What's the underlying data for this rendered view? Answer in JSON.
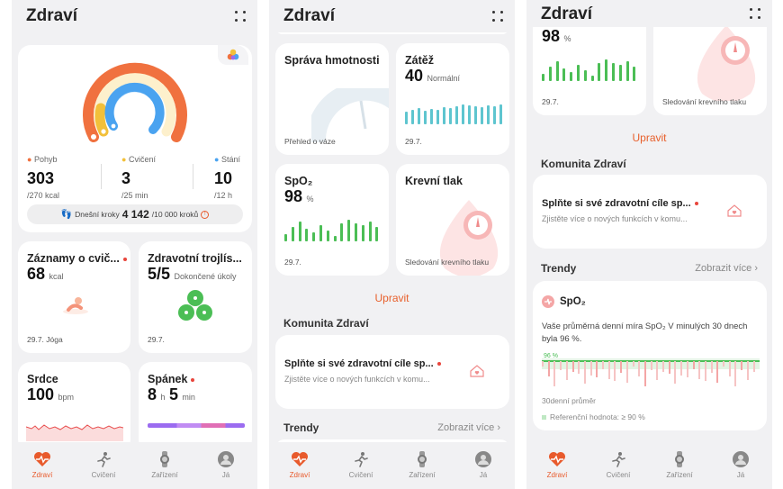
{
  "app_title": "Zdraví",
  "colors": {
    "accent": "#e85a2c",
    "move": "#f0713f",
    "exercise": "#f2c03a",
    "stand": "#4aa3f0",
    "green": "#4bbe55",
    "teal": "#5ec5cf",
    "pink": "#f4a6a6"
  },
  "phone1": {
    "rings": {
      "move": {
        "label": "Pohyb",
        "value": "303",
        "goal": "/270 kcal",
        "fraction": 1.0
      },
      "exercise": {
        "label": "Cvičení",
        "value": "3",
        "goal": "/25 min",
        "fraction": 0.12
      },
      "stand": {
        "label": "Stání",
        "value": "10",
        "goal": "/12 h",
        "fraction": 0.83
      }
    },
    "steps": {
      "label": "Dnešní kroky",
      "value": "4 142",
      "goal": "/10 000 kroků"
    },
    "exercise_card": {
      "title": "Záznamy o cvič...",
      "value": "68",
      "unit": "kcal",
      "foot": "29.7. Jóga"
    },
    "trio_card": {
      "title": "Zdravotní trojlís...",
      "value": "5/5",
      "unit": "Dokončené úkoly",
      "foot": "29.7."
    },
    "heart_card": {
      "title": "Srdce",
      "value": "100",
      "unit": "bpm"
    },
    "sleep_card": {
      "title": "Spánek",
      "hours": "8",
      "h_unit": "h",
      "minutes": "5",
      "m_unit": "min"
    }
  },
  "phone2": {
    "weight_card": {
      "title": "Správa hmotnosti",
      "foot": "Přehled o váze"
    },
    "load_card": {
      "title": "Zátěž",
      "value": "40",
      "unit": "Normální",
      "foot": "29.7.",
      "bars": [
        14,
        16,
        18,
        15,
        17,
        16,
        19,
        18,
        20,
        22,
        21,
        20,
        19,
        21,
        20,
        22
      ]
    },
    "spo2_card": {
      "title": "SpO₂",
      "value": "98",
      "unit": "%",
      "foot": "29.7.",
      "bars": [
        8,
        16,
        22,
        14,
        10,
        18,
        12,
        6,
        20,
        24,
        20,
        18,
        22,
        16
      ]
    },
    "bp_card": {
      "title": "Krevní tlak",
      "foot": "Sledování krevního tlaku"
    },
    "upravit": "Upravit",
    "community": "Komunita Zdraví",
    "community_card": {
      "title": "Splňte si své zdravotní cíle sp...",
      "subtitle": "Zjistěte více o nových funkcích v komu..."
    },
    "trends": "Trendy",
    "show_more": "Zobrazit více"
  },
  "phone3": {
    "spo2_card": {
      "value": "98",
      "unit": "%",
      "foot": "29.7.",
      "bars": [
        8,
        16,
        22,
        14,
        10,
        18,
        12,
        6,
        20,
        24,
        20,
        18,
        22,
        16
      ]
    },
    "bp_card": {
      "foot": "Sledování krevního tlaku"
    },
    "upravit": "Upravit",
    "community": "Komunita Zdraví",
    "community_card": {
      "title": "Splňte si své zdravotní cíle sp...",
      "subtitle": "Zjistěte více o nových funkcích v komu..."
    },
    "trends": "Trendy",
    "show_more": "Zobrazit více",
    "spo2_trend": {
      "title": "SpO₂",
      "text": "Vaše průměrná denní míra SpO₂ V minulých 30 dnech byla 96 %.",
      "chart_label": "96 %",
      "avg_label": "30denní průměr",
      "ref_label": "Referenční hodnota: ≥ 90 %"
    }
  },
  "nav": [
    {
      "label": "Zdraví",
      "icon": "heart-rate-icon",
      "active": true
    },
    {
      "label": "Cvičení",
      "icon": "runner-icon",
      "active": false
    },
    {
      "label": "Zařízení",
      "icon": "watch-icon",
      "active": false
    },
    {
      "label": "Já",
      "icon": "avatar-icon",
      "active": false
    }
  ]
}
